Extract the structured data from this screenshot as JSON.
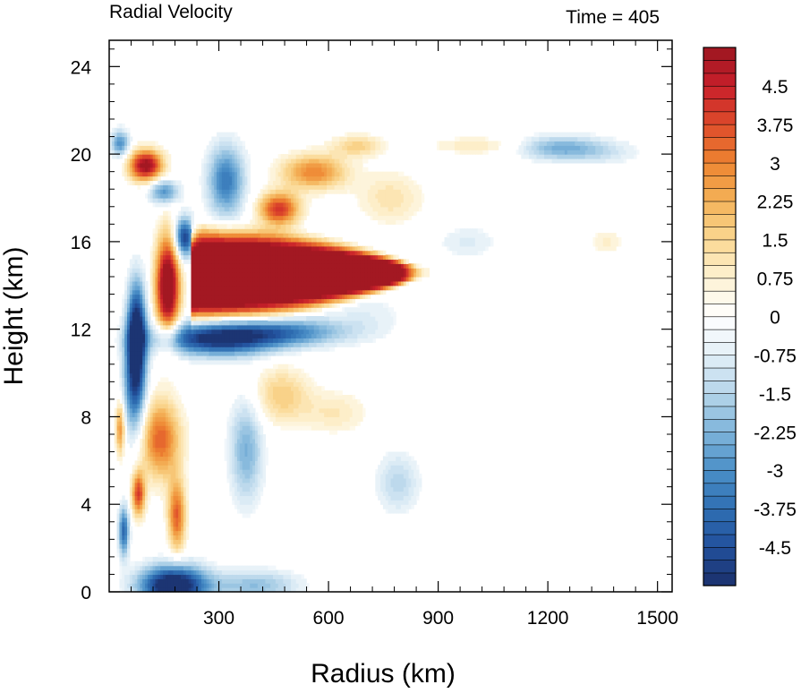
{
  "chart_data": {
    "type": "heatmap",
    "title_left": "Radial Velocity",
    "title_right": "Time = 405",
    "xlabel": "Radius (km)",
    "ylabel": "Height (km)",
    "xlim": [
      0,
      1540
    ],
    "ylim": [
      0,
      25.2
    ],
    "x_ticks": [
      300,
      600,
      900,
      1200,
      1500
    ],
    "x_tick_labels": [
      "300",
      "600",
      "900",
      "1200",
      "1500"
    ],
    "y_ticks": [
      0,
      4,
      8,
      12,
      16,
      20,
      24
    ],
    "y_tick_labels": [
      "0",
      "4",
      "8",
      "12",
      "16",
      "20",
      "24"
    ],
    "colorbar": {
      "min": -5.25,
      "max": 5.25,
      "step": 0.25,
      "labels": [
        "4.5",
        "3.75",
        "3",
        "2.25",
        "1.5",
        "0.75",
        "0",
        "-0.75",
        "-1.5",
        "-2.25",
        "-3",
        "-3.75",
        "-4.5"
      ],
      "label_values": [
        4.5,
        3.75,
        3,
        2.25,
        1.5,
        0.75,
        0,
        -0.75,
        -1.5,
        -2.25,
        -3,
        -3.75,
        -4.5
      ],
      "palette": [
        "#1b2f6b",
        "#22509c",
        "#2f6fb3",
        "#4a8fc7",
        "#7fb4da",
        "#b5d5ea",
        "#e3eff7",
        "#ffffff",
        "#fdf2d4",
        "#fad892",
        "#f4b359",
        "#ee8531",
        "#de4b2b",
        "#c8202b",
        "#9c1620"
      ]
    },
    "features": [
      {
        "name": "upper outflow jet (strong positive)",
        "r": [
          230,
          840
        ],
        "z": [
          12.6,
          16.4
        ],
        "value": 5.2
      },
      {
        "name": "inflow below jet (negative)",
        "r": [
          230,
          600
        ],
        "z": [
          10.8,
          12.6
        ],
        "value": -4.5
      },
      {
        "name": "upper outflow arm (positive)",
        "r": [
          420,
          720
        ],
        "z": [
          17.0,
          20.8
        ],
        "value": 3.0
      },
      {
        "name": "boundary-layer inflow (negative)",
        "r": [
          120,
          300
        ],
        "z": [
          0,
          1.4
        ],
        "value": -5.0
      },
      {
        "name": "upper inflow band (negative)",
        "r": [
          1100,
          1430
        ],
        "z": [
          19.8,
          20.8
        ],
        "value": -1.8
      }
    ]
  }
}
